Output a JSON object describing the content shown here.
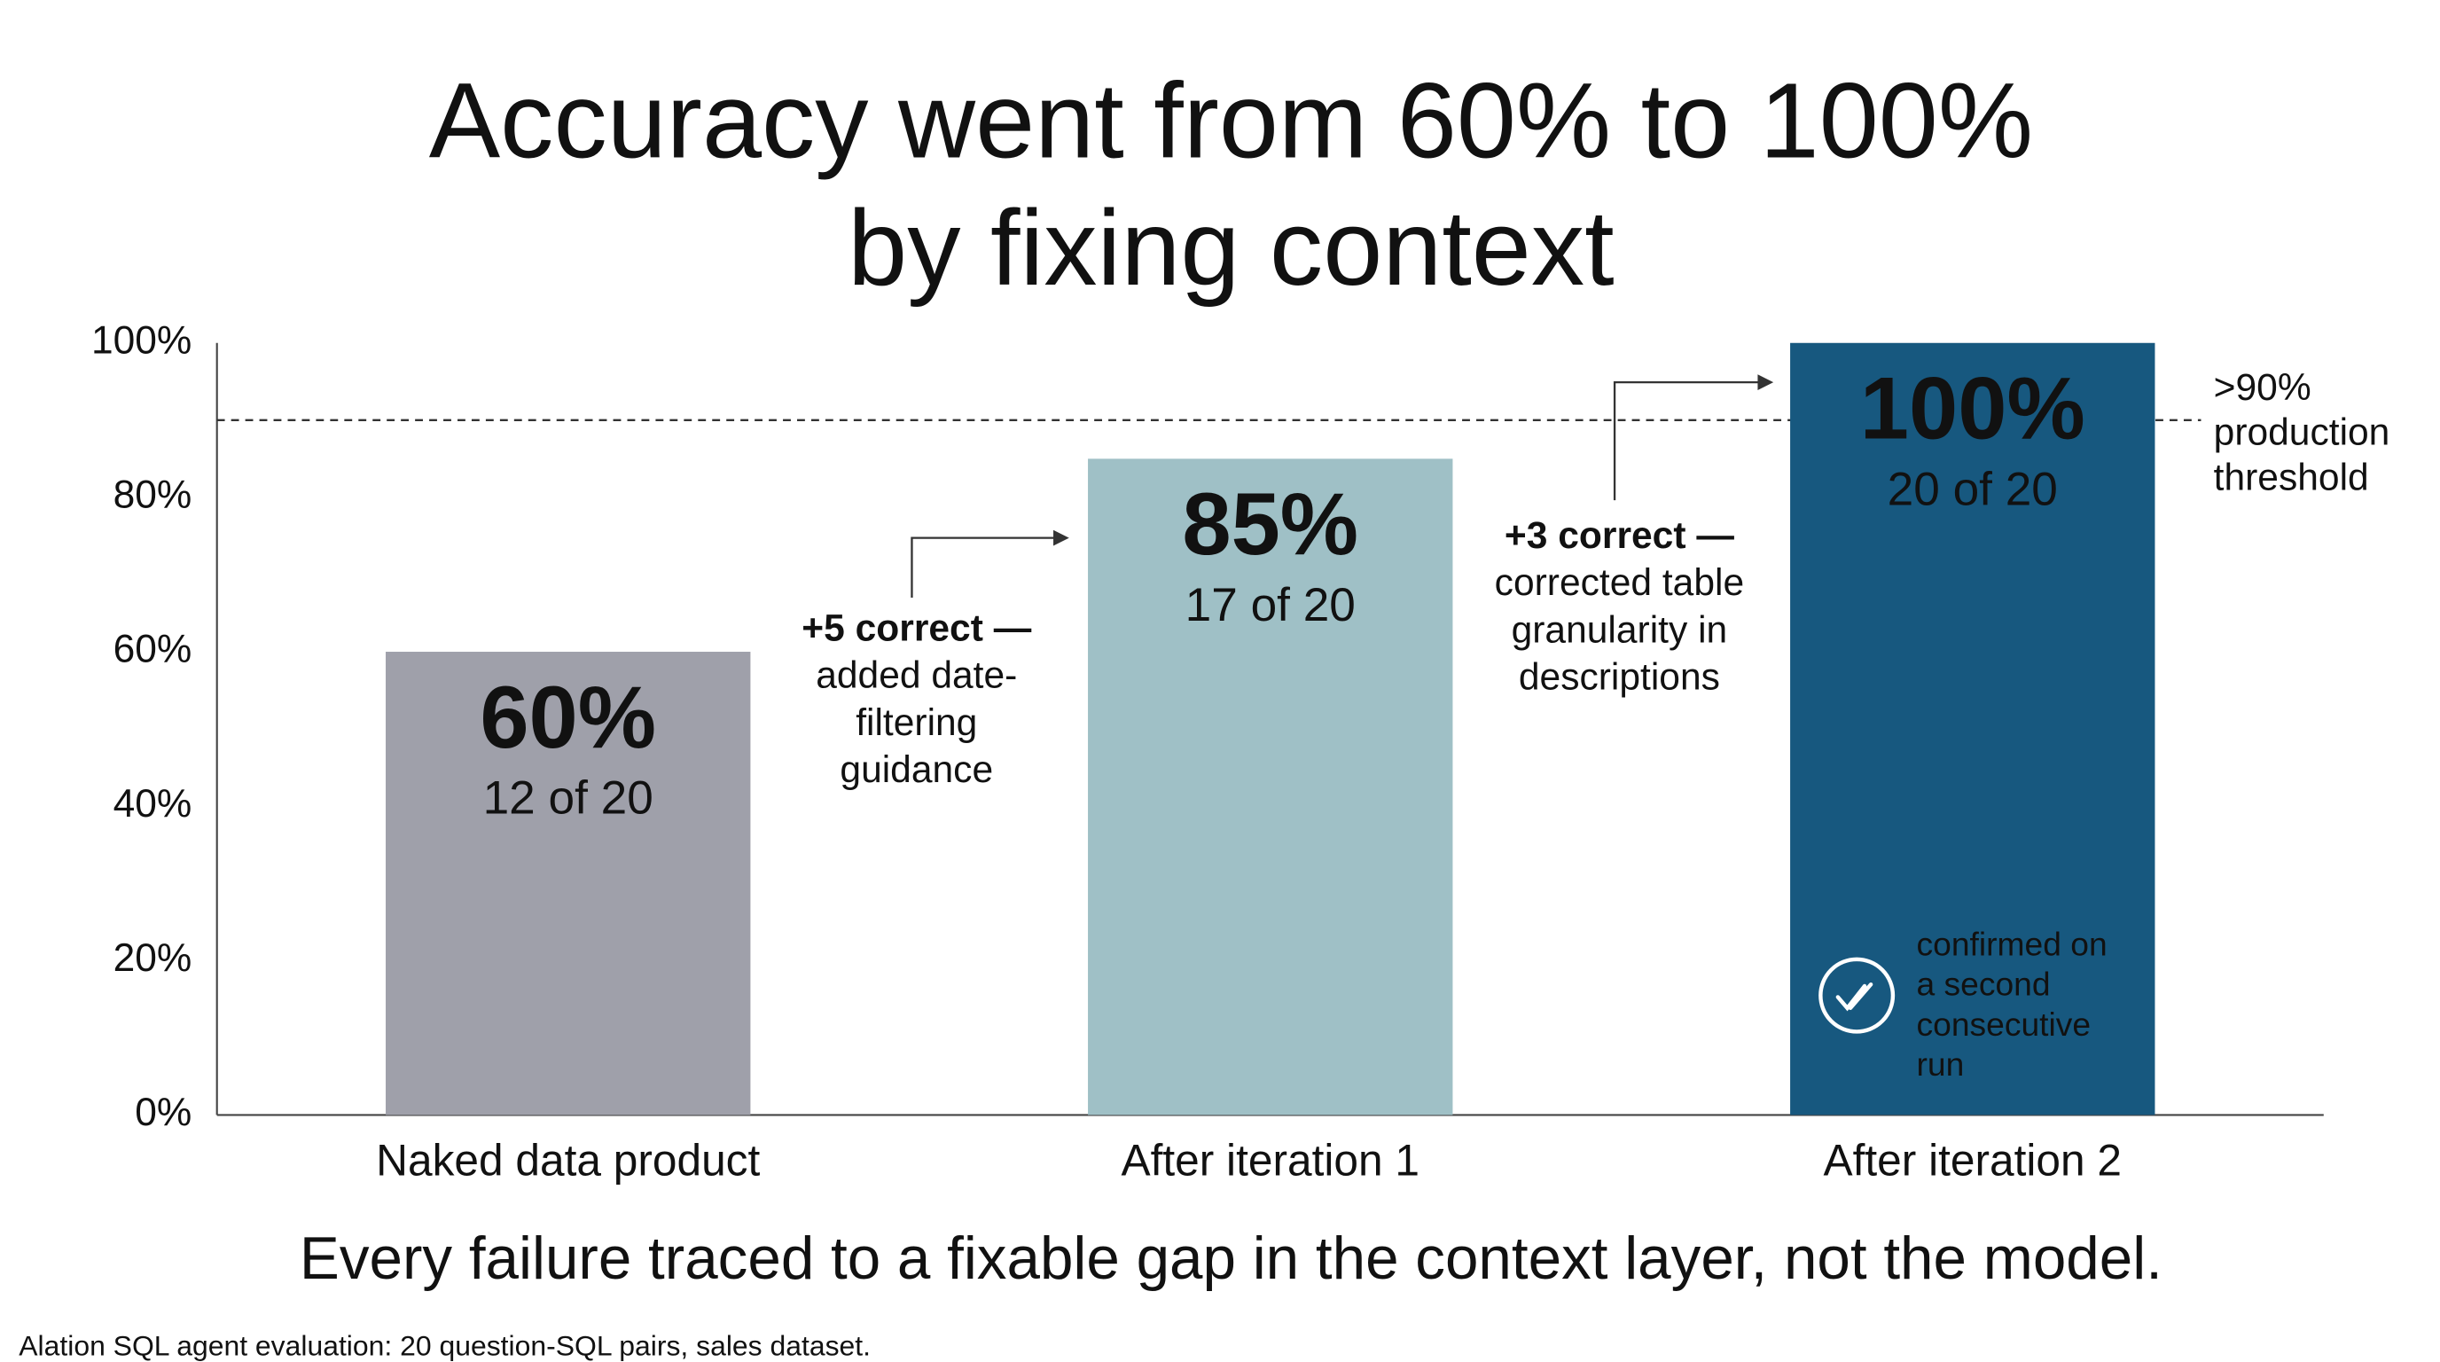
{
  "chart_data": {
    "type": "bar",
    "title": [
      "Accuracy went from 60% to 100%",
      "by fixing context"
    ],
    "categories": [
      "Naked data product",
      "After iteration 1",
      "After iteration 2"
    ],
    "values": [
      60,
      85,
      100
    ],
    "value_labels": [
      "60%",
      "85%",
      "100%"
    ],
    "counts": [
      "12 of 20",
      "17 of 20",
      "20 of 20"
    ],
    "colors": [
      "#9fa0aa",
      "#9fc0c6",
      "#17587f"
    ],
    "ylim": [
      0,
      100
    ],
    "yticks": [
      {
        "value": 0,
        "label": "0%"
      },
      {
        "value": 20,
        "label": "20%"
      },
      {
        "value": 40,
        "label": "40%"
      },
      {
        "value": 60,
        "label": "60%"
      },
      {
        "value": 80,
        "label": "80%"
      },
      {
        "value": 100,
        "label": "100%"
      }
    ],
    "threshold": {
      "value": 90,
      "label": [
        ">90%",
        "production",
        "threshold"
      ]
    },
    "annotations": [
      {
        "bold": "+5 correct —",
        "lines": [
          "added date-",
          "filtering",
          "guidance"
        ]
      },
      {
        "bold": "+3 correct —",
        "lines": [
          "corrected table",
          "granularity in",
          "descriptions"
        ]
      }
    ],
    "bar_note": [
      "confirmed on",
      "a second",
      "consecutive",
      "run"
    ],
    "caption": "Every failure traced to a fixable gap in the context layer, not the model.",
    "footnote": "Alation SQL agent evaluation: 20 question-SQL pairs, sales dataset."
  }
}
